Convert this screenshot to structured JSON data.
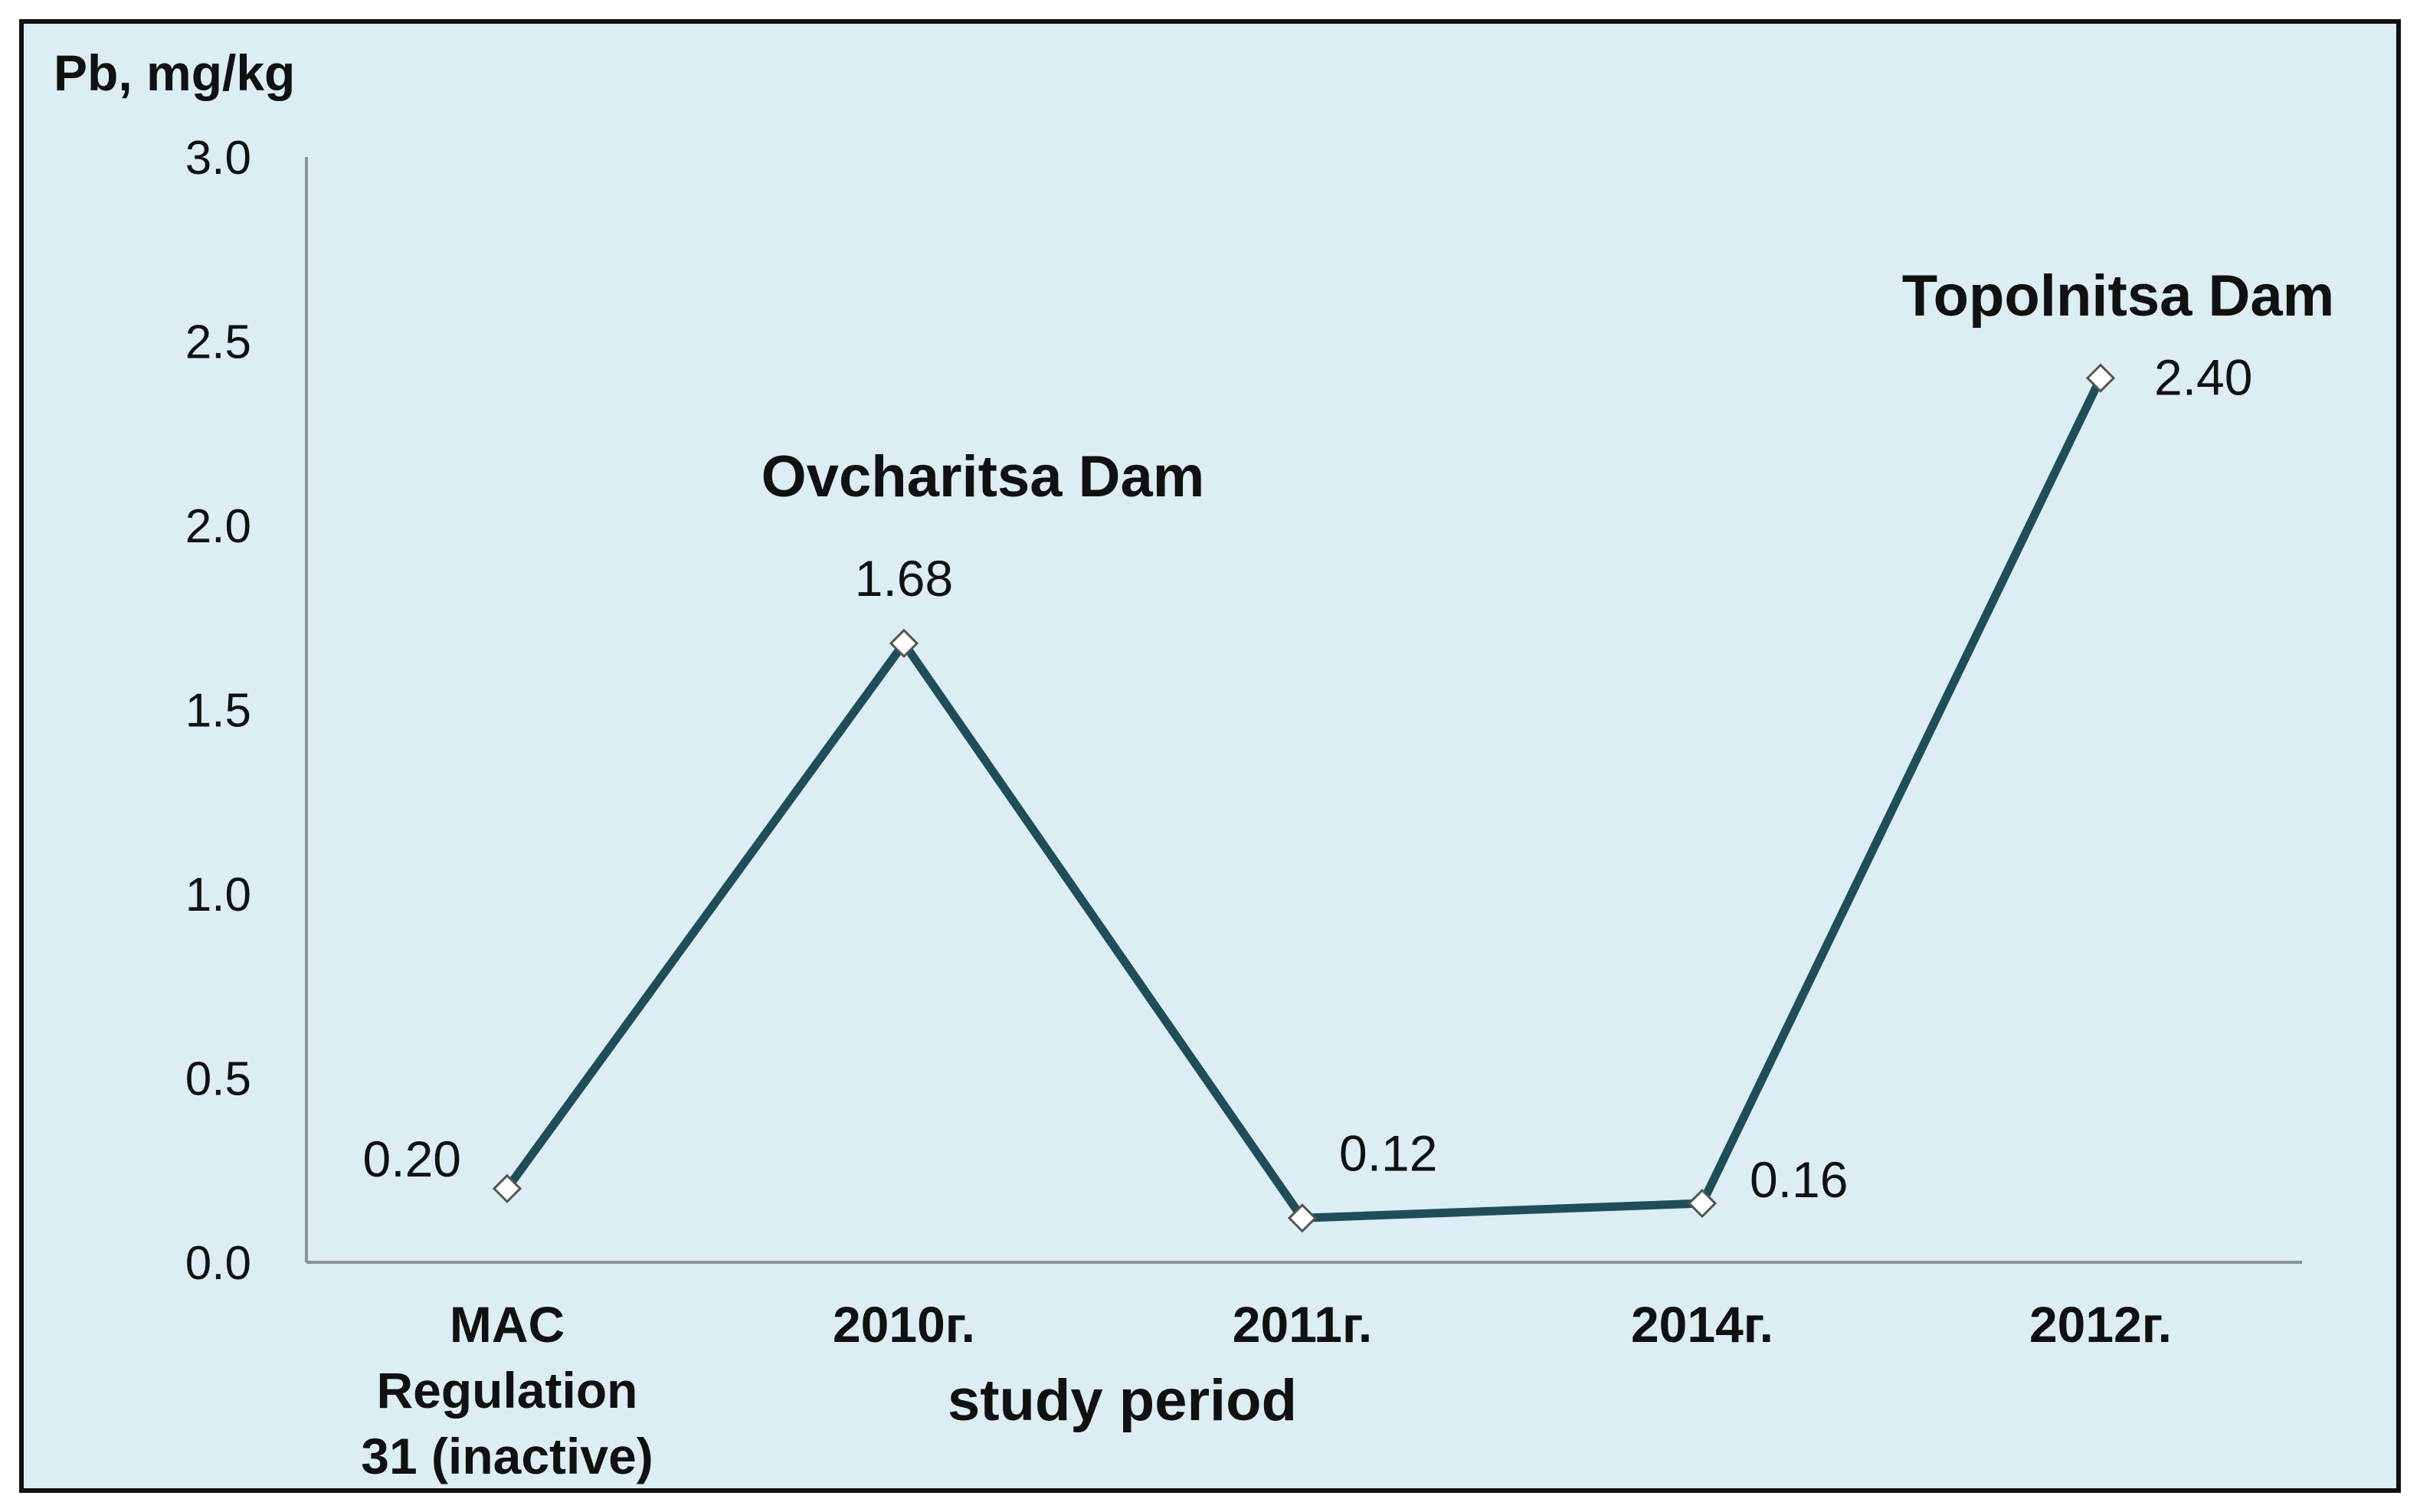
{
  "chart_data": {
    "type": "line",
    "ylabel": "Pb, mg/kg",
    "xlabel": "study period",
    "ylim": [
      0,
      3.0
    ],
    "yticks": [
      "0.0",
      "0.5",
      "1.0",
      "1.5",
      "2.0",
      "2.5",
      "3.0"
    ],
    "categories": [
      [
        "MAC",
        "Regulation",
        "31 (inactive)"
      ],
      [
        "2010г."
      ],
      [
        "2011г."
      ],
      [
        "2014г."
      ],
      [
        "2012г."
      ]
    ],
    "series": [
      {
        "name": "Pb",
        "values": [
          0.2,
          1.68,
          0.12,
          0.16,
          2.4
        ],
        "labels": [
          "0.20",
          "1.68",
          "0.12",
          "0.16",
          "2.40"
        ]
      }
    ],
    "annotations": [
      {
        "text": "Ovcharitsa Dam",
        "near_category": 1
      },
      {
        "text": "Topolnitsa Dam",
        "near_category": 4
      }
    ],
    "colors": {
      "background": "#dcedf3",
      "line": "#1f4e5a",
      "marker": "#ffffff"
    }
  }
}
